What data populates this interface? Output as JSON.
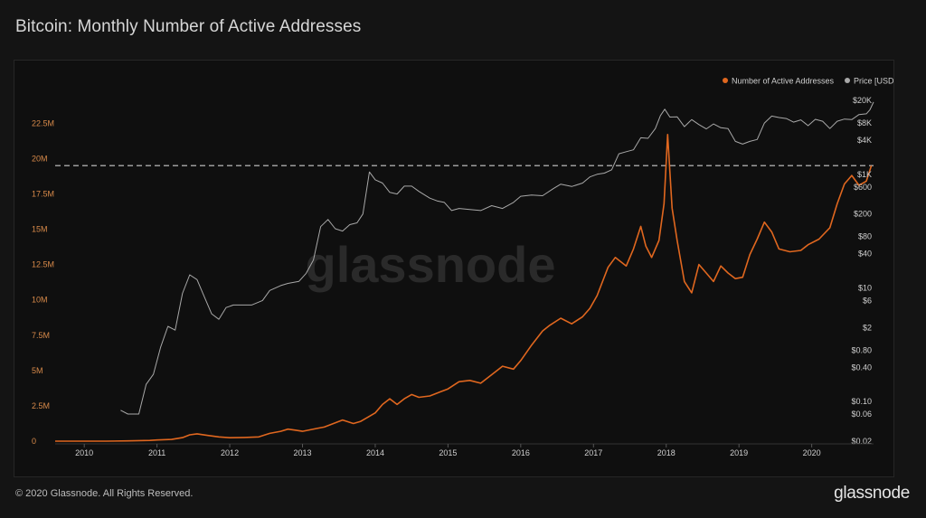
{
  "header": {
    "title": "Bitcoin: Monthly Number of Active Addresses"
  },
  "footer": {
    "copyright": "© 2020 Glassnode. All Rights Reserved.",
    "brand": "glassnode"
  },
  "watermark": "glassnode",
  "colors": {
    "addresses": "#e0671f",
    "price": "#a8a8a8",
    "left_axis_text": "#d88a4a",
    "right_axis_text": "#cfcfcf",
    "reference_line": "#cccccc"
  },
  "chart_data": {
    "type": "line",
    "legend_position": "top-right",
    "grid": false,
    "x_ticks": [
      "2010",
      "2011",
      "2012",
      "2013",
      "2014",
      "2015",
      "2016",
      "2017",
      "2018",
      "2019",
      "2020"
    ],
    "x_range": [
      2009.6,
      2020.85
    ],
    "y_left": {
      "ticks": [
        "0",
        "2.5M",
        "5M",
        "7.5M",
        "10M",
        "12.5M",
        "15M",
        "17.5M",
        "20M",
        "22.5M"
      ],
      "tick_values": [
        0,
        2500000,
        5000000,
        7500000,
        10000000,
        12500000,
        15000000,
        17500000,
        20000000,
        22500000
      ],
      "range": [
        0,
        24500000
      ]
    },
    "y_right": {
      "scale": "log",
      "ticks": [
        "$0.02",
        "$0.06",
        "$0.10",
        "$0.40",
        "$0.80",
        "$2",
        "$6",
        "$10",
        "$40",
        "$80",
        "$200",
        "$600",
        "$1K",
        "$4K",
        "$8K",
        "$20K"
      ],
      "tick_values": [
        0.02,
        0.06,
        0.1,
        0.4,
        0.8,
        2,
        6,
        10,
        40,
        80,
        200,
        600,
        1000,
        4000,
        8000,
        20000
      ],
      "range": [
        0.02,
        25000
      ]
    },
    "reference_line": {
      "value": 19500000
    },
    "series": [
      {
        "name": "Number of Active Addresses",
        "axis": "left",
        "points": [
          [
            2009.6,
            0
          ],
          [
            2010.0,
            0
          ],
          [
            2010.3,
            0
          ],
          [
            2010.6,
            20000
          ],
          [
            2010.9,
            50000
          ],
          [
            2011.0,
            80000
          ],
          [
            2011.2,
            120000
          ],
          [
            2011.35,
            250000
          ],
          [
            2011.45,
            450000
          ],
          [
            2011.55,
            520000
          ],
          [
            2011.7,
            400000
          ],
          [
            2011.85,
            300000
          ],
          [
            2012.0,
            240000
          ],
          [
            2012.2,
            260000
          ],
          [
            2012.4,
            300000
          ],
          [
            2012.55,
            550000
          ],
          [
            2012.7,
            700000
          ],
          [
            2012.8,
            850000
          ],
          [
            2012.9,
            780000
          ],
          [
            2013.0,
            700000
          ],
          [
            2013.1,
            800000
          ],
          [
            2013.2,
            900000
          ],
          [
            2013.3,
            1000000
          ],
          [
            2013.45,
            1300000
          ],
          [
            2013.55,
            1500000
          ],
          [
            2013.7,
            1250000
          ],
          [
            2013.8,
            1400000
          ],
          [
            2013.9,
            1700000
          ],
          [
            2014.0,
            2000000
          ],
          [
            2014.1,
            2600000
          ],
          [
            2014.2,
            3000000
          ],
          [
            2014.3,
            2600000
          ],
          [
            2014.4,
            3000000
          ],
          [
            2014.5,
            3300000
          ],
          [
            2014.6,
            3100000
          ],
          [
            2014.75,
            3200000
          ],
          [
            2014.9,
            3500000
          ],
          [
            2015.0,
            3700000
          ],
          [
            2015.15,
            4200000
          ],
          [
            2015.3,
            4300000
          ],
          [
            2015.45,
            4100000
          ],
          [
            2015.6,
            4700000
          ],
          [
            2015.75,
            5300000
          ],
          [
            2015.9,
            5100000
          ],
          [
            2016.0,
            5700000
          ],
          [
            2016.15,
            6800000
          ],
          [
            2016.3,
            7800000
          ],
          [
            2016.4,
            8200000
          ],
          [
            2016.55,
            8700000
          ],
          [
            2016.7,
            8300000
          ],
          [
            2016.85,
            8800000
          ],
          [
            2016.95,
            9400000
          ],
          [
            2017.05,
            10300000
          ],
          [
            2017.2,
            12300000
          ],
          [
            2017.3,
            13000000
          ],
          [
            2017.45,
            12400000
          ],
          [
            2017.55,
            13600000
          ],
          [
            2017.65,
            15200000
          ],
          [
            2017.72,
            13800000
          ],
          [
            2017.8,
            13000000
          ],
          [
            2017.9,
            14200000
          ],
          [
            2017.97,
            16800000
          ],
          [
            2018.02,
            21700000
          ],
          [
            2018.08,
            16500000
          ],
          [
            2018.15,
            14200000
          ],
          [
            2018.25,
            11300000
          ],
          [
            2018.35,
            10500000
          ],
          [
            2018.45,
            12500000
          ],
          [
            2018.55,
            11900000
          ],
          [
            2018.65,
            11300000
          ],
          [
            2018.75,
            12400000
          ],
          [
            2018.85,
            11900000
          ],
          [
            2018.95,
            11500000
          ],
          [
            2019.05,
            11600000
          ],
          [
            2019.15,
            13200000
          ],
          [
            2019.25,
            14300000
          ],
          [
            2019.35,
            15500000
          ],
          [
            2019.45,
            14800000
          ],
          [
            2019.55,
            13600000
          ],
          [
            2019.7,
            13400000
          ],
          [
            2019.85,
            13500000
          ],
          [
            2019.95,
            13900000
          ],
          [
            2020.1,
            14300000
          ],
          [
            2020.25,
            15100000
          ],
          [
            2020.35,
            16800000
          ],
          [
            2020.45,
            18200000
          ],
          [
            2020.55,
            18800000
          ],
          [
            2020.65,
            18100000
          ],
          [
            2020.75,
            18400000
          ],
          [
            2020.82,
            19500000
          ]
        ]
      },
      {
        "name": "Price [USD]",
        "axis": "right",
        "points": [
          [
            2010.5,
            0.07
          ],
          [
            2010.6,
            0.06
          ],
          [
            2010.75,
            0.06
          ],
          [
            2010.85,
            0.2
          ],
          [
            2010.95,
            0.3
          ],
          [
            2011.05,
            0.9
          ],
          [
            2011.15,
            2.1
          ],
          [
            2011.25,
            1.8
          ],
          [
            2011.35,
            8
          ],
          [
            2011.45,
            17
          ],
          [
            2011.55,
            14
          ],
          [
            2011.65,
            7
          ],
          [
            2011.75,
            3.5
          ],
          [
            2011.85,
            2.8
          ],
          [
            2011.95,
            4.5
          ],
          [
            2012.05,
            5
          ],
          [
            2012.15,
            5
          ],
          [
            2012.3,
            5
          ],
          [
            2012.45,
            6
          ],
          [
            2012.55,
            9
          ],
          [
            2012.7,
            11
          ],
          [
            2012.8,
            12
          ],
          [
            2012.95,
            13
          ],
          [
            2013.05,
            18
          ],
          [
            2013.15,
            31
          ],
          [
            2013.25,
            120
          ],
          [
            2013.35,
            160
          ],
          [
            2013.45,
            110
          ],
          [
            2013.55,
            100
          ],
          [
            2013.65,
            130
          ],
          [
            2013.75,
            140
          ],
          [
            2013.83,
            200
          ],
          [
            2013.92,
            1100
          ],
          [
            2014.0,
            800
          ],
          [
            2014.1,
            700
          ],
          [
            2014.2,
            480
          ],
          [
            2014.3,
            450
          ],
          [
            2014.4,
            620
          ],
          [
            2014.5,
            620
          ],
          [
            2014.6,
            500
          ],
          [
            2014.75,
            380
          ],
          [
            2014.85,
            340
          ],
          [
            2014.95,
            320
          ],
          [
            2015.05,
            230
          ],
          [
            2015.15,
            250
          ],
          [
            2015.3,
            240
          ],
          [
            2015.45,
            230
          ],
          [
            2015.6,
            280
          ],
          [
            2015.75,
            250
          ],
          [
            2015.9,
            320
          ],
          [
            2016.0,
            410
          ],
          [
            2016.15,
            430
          ],
          [
            2016.3,
            420
          ],
          [
            2016.45,
            560
          ],
          [
            2016.55,
            670
          ],
          [
            2016.7,
            610
          ],
          [
            2016.85,
            700
          ],
          [
            2016.95,
            900
          ],
          [
            2017.05,
            1000
          ],
          [
            2017.15,
            1050
          ],
          [
            2017.25,
            1200
          ],
          [
            2017.35,
            2300
          ],
          [
            2017.45,
            2500
          ],
          [
            2017.55,
            2700
          ],
          [
            2017.65,
            4400
          ],
          [
            2017.75,
            4300
          ],
          [
            2017.85,
            6400
          ],
          [
            2017.92,
            10800
          ],
          [
            2017.98,
            14000
          ],
          [
            2018.05,
            10200
          ],
          [
            2018.15,
            10300
          ],
          [
            2018.25,
            6900
          ],
          [
            2018.35,
            9200
          ],
          [
            2018.45,
            7500
          ],
          [
            2018.55,
            6300
          ],
          [
            2018.65,
            7700
          ],
          [
            2018.75,
            6600
          ],
          [
            2018.85,
            6400
          ],
          [
            2018.95,
            3800
          ],
          [
            2019.05,
            3400
          ],
          [
            2019.15,
            3800
          ],
          [
            2019.25,
            4100
          ],
          [
            2019.35,
            8000
          ],
          [
            2019.45,
            10600
          ],
          [
            2019.55,
            10000
          ],
          [
            2019.65,
            9600
          ],
          [
            2019.75,
            8300
          ],
          [
            2019.85,
            9100
          ],
          [
            2019.95,
            7200
          ],
          [
            2020.05,
            9300
          ],
          [
            2020.15,
            8600
          ],
          [
            2020.25,
            6400
          ],
          [
            2020.35,
            8600
          ],
          [
            2020.45,
            9400
          ],
          [
            2020.55,
            9200
          ],
          [
            2020.65,
            11300
          ],
          [
            2020.75,
            11600
          ],
          [
            2020.8,
            13700
          ],
          [
            2020.85,
            18700
          ]
        ]
      }
    ]
  }
}
